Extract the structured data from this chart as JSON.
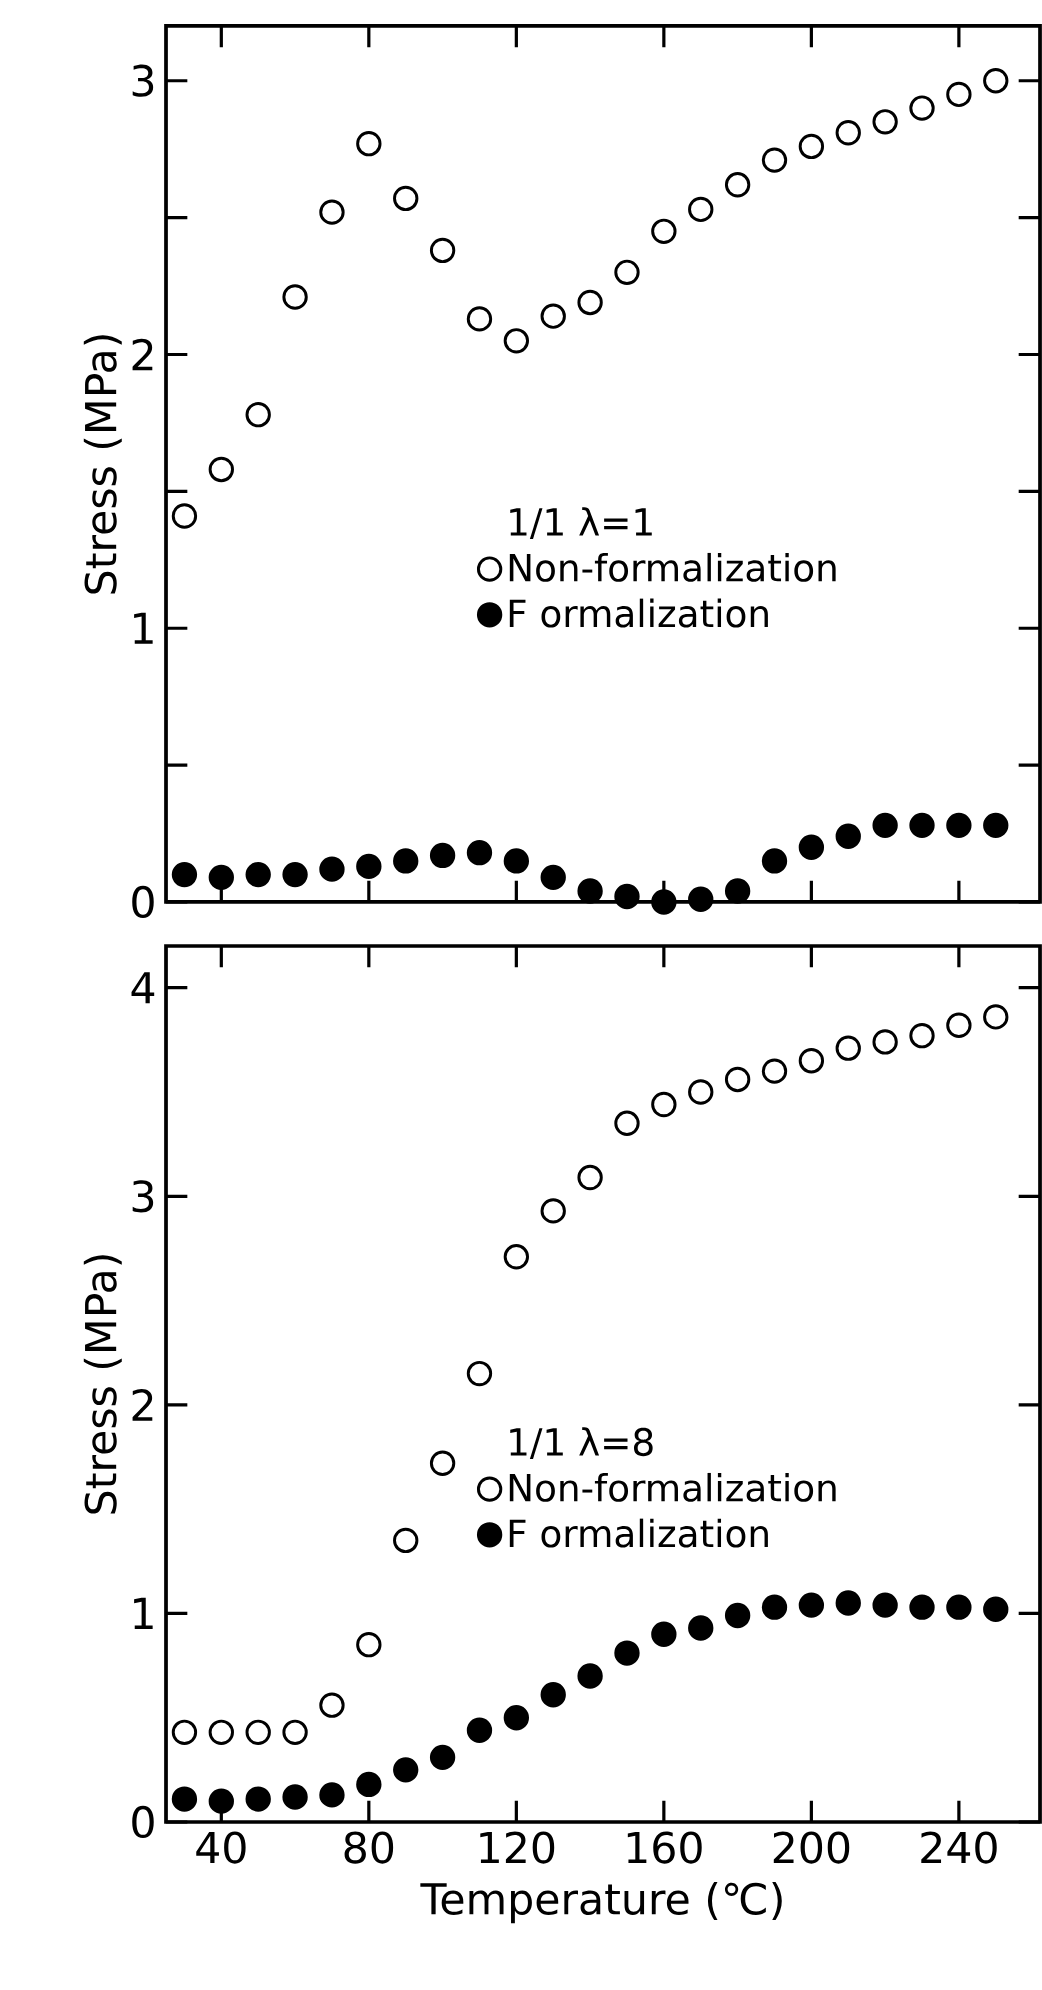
{
  "chart_data": [
    {
      "type": "scatter",
      "ylabel": "Stress (MPa)",
      "legend_title": "1/1   λ=1",
      "legend": "center",
      "tick_labels": "y",
      "x": [
        30,
        40,
        50,
        60,
        70,
        80,
        90,
        100,
        110,
        120,
        130,
        140,
        150,
        160,
        170,
        180,
        190,
        200,
        210,
        220,
        230,
        240,
        250
      ],
      "xlim": [
        25,
        262
      ],
      "xticks": [
        40,
        80,
        120,
        160,
        200,
        240
      ],
      "ylim": [
        0,
        3.2
      ],
      "yticks": [
        0,
        {
          "value": 0.5,
          "label": null
        },
        1,
        {
          "value": 1.5,
          "label": null
        },
        2,
        {
          "value": 2.5,
          "label": null
        },
        3
      ],
      "series": [
        {
          "name": "Non-formalization",
          "color": "#ffffff",
          "marker": "circle",
          "values": [
            1.41,
            1.58,
            1.78,
            2.21,
            2.52,
            2.77,
            2.57,
            2.38,
            2.13,
            2.05,
            2.14,
            2.19,
            2.3,
            2.45,
            2.53,
            2.62,
            2.71,
            2.76,
            2.81,
            2.85,
            2.9,
            2.95,
            3.0
          ]
        },
        {
          "name": "F ormalization",
          "color": "#000000",
          "marker": "circle",
          "values": [
            0.1,
            0.09,
            0.1,
            0.1,
            0.12,
            0.13,
            0.15,
            0.17,
            0.18,
            0.15,
            0.09,
            0.04,
            0.02,
            0.0,
            0.01,
            0.04,
            0.15,
            0.2,
            0.24,
            0.28,
            0.28,
            0.28,
            0.28
          ]
        }
      ]
    },
    {
      "type": "scatter",
      "xlabel": "Temperature (℃)",
      "ylabel": "Stress (MPa)",
      "legend_title": "1/1   λ=8",
      "legend": "center",
      "x": [
        30,
        40,
        50,
        60,
        70,
        80,
        90,
        100,
        110,
        120,
        130,
        140,
        150,
        160,
        170,
        180,
        190,
        200,
        210,
        220,
        230,
        240,
        250
      ],
      "xlim": [
        25,
        262
      ],
      "xticks": [
        40,
        80,
        120,
        160,
        200,
        240
      ],
      "ylim": [
        0,
        4.2
      ],
      "yticks": [
        0,
        1,
        2,
        3,
        4
      ],
      "series": [
        {
          "name": "Non-formalization",
          "color": "#ffffff",
          "marker": "circle",
          "values": [
            0.43,
            0.43,
            0.43,
            0.43,
            0.56,
            0.85,
            1.35,
            1.72,
            2.15,
            2.71,
            2.93,
            3.09,
            3.35,
            3.44,
            3.5,
            3.56,
            3.6,
            3.65,
            3.71,
            3.74,
            3.77,
            3.82,
            3.86
          ]
        },
        {
          "name": "F ormalization",
          "color": "#000000",
          "marker": "circle",
          "values": [
            0.11,
            0.1,
            0.11,
            0.12,
            0.13,
            0.18,
            0.25,
            0.31,
            0.44,
            0.5,
            0.61,
            0.7,
            0.81,
            0.9,
            0.93,
            0.99,
            1.03,
            1.04,
            1.05,
            1.04,
            1.03,
            1.03,
            1.02
          ]
        }
      ]
    }
  ]
}
